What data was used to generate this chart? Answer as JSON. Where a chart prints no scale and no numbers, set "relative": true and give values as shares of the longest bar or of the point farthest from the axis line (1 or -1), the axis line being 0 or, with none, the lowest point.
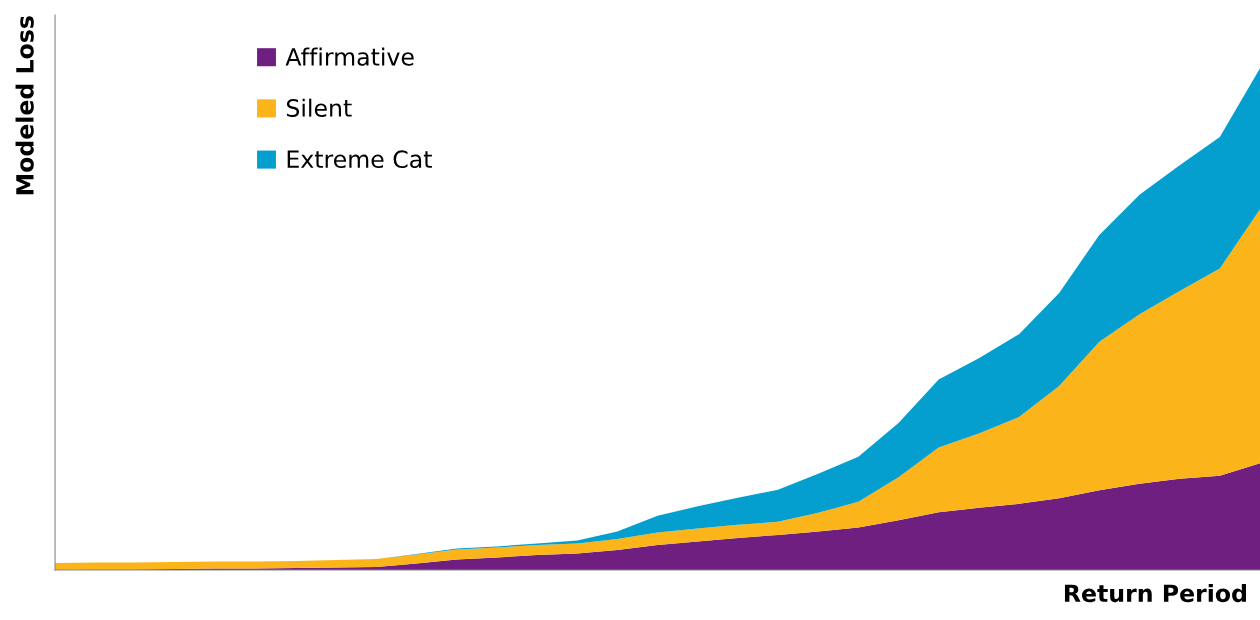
{
  "chart_data": {
    "type": "area",
    "stacked": true,
    "relative": true,
    "xlabel": "Return Period",
    "ylabel": "Modeled Loss",
    "legend": "top left",
    "grid": false,
    "categories": [
      null,
      null,
      null,
      null,
      null,
      null,
      null,
      null,
      null,
      null,
      null,
      null,
      null,
      null,
      null,
      null,
      null,
      null,
      null,
      null,
      null,
      null,
      null,
      null,
      null,
      null,
      null,
      null,
      null,
      null,
      null
    ],
    "series": [
      {
        "name": "Affirmative",
        "color": "#6f1f7f",
        "values": [
          0,
          0.001,
          0.001,
          0.002,
          0.003,
          0.003,
          0.004,
          0.005,
          0.006,
          0.013,
          0.021,
          0.025,
          0.03,
          0.033,
          0.04,
          0.05,
          0.057,
          0.064,
          0.07,
          0.077,
          0.085,
          0.099,
          0.115,
          0.124,
          0.132,
          0.143,
          0.159,
          0.172,
          0.182,
          0.188,
          0.213
        ]
      },
      {
        "name": "Silent",
        "color": "#fbb41a",
        "values": [
          0.014,
          0.014,
          0.014,
          0.014,
          0.014,
          0.014,
          0.014,
          0.015,
          0.016,
          0.018,
          0.02,
          0.02,
          0.02,
          0.02,
          0.022,
          0.025,
          0.026,
          0.026,
          0.026,
          0.037,
          0.051,
          0.086,
          0.129,
          0.148,
          0.173,
          0.224,
          0.296,
          0.338,
          0.374,
          0.413,
          0.506
        ]
      },
      {
        "name": "Extreme Cat",
        "color": "#049fcf",
        "values": [
          0,
          0,
          0,
          0,
          0,
          0,
          0,
          0,
          0,
          0.001,
          0.002,
          0.002,
          0.003,
          0.006,
          0.015,
          0.033,
          0.044,
          0.054,
          0.064,
          0.078,
          0.09,
          0.108,
          0.136,
          0.15,
          0.165,
          0.185,
          0.213,
          0.238,
          0.251,
          0.262,
          0.281
        ]
      }
    ]
  }
}
